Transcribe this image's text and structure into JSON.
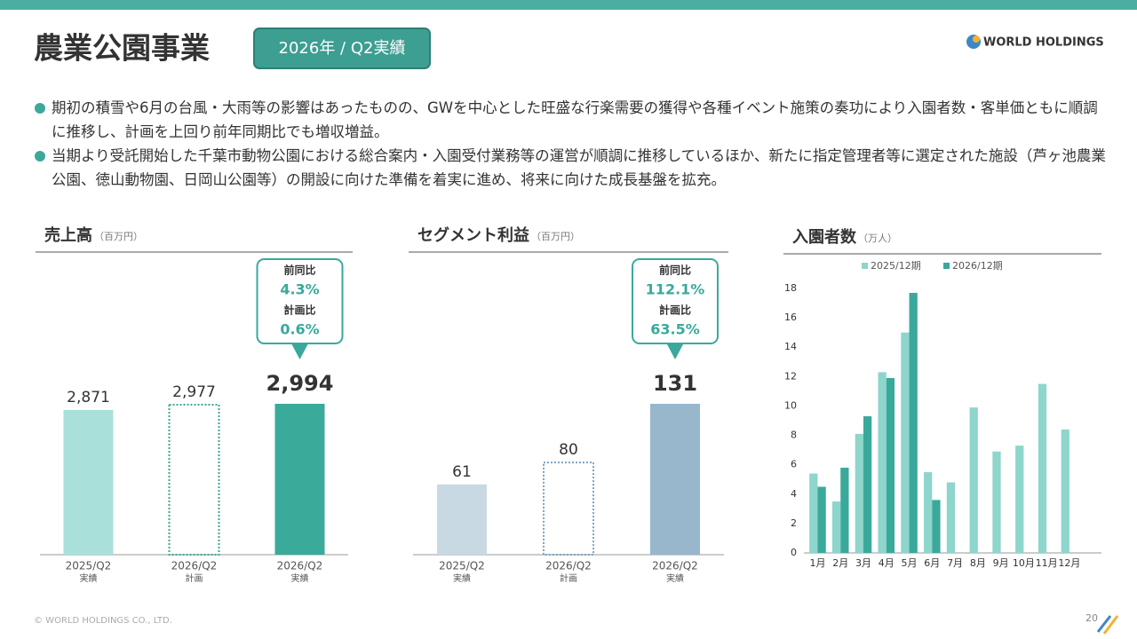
{
  "header": {
    "title": "農業公園事業",
    "badge": "2026年 / Q2実績",
    "logo": "WORLD HOLDINGS"
  },
  "bullets": [
    "期初の積雪や6月の台風・大雨等の影響はあったものの、GWを中心とした旺盛な行楽需要の獲得や各種イベント施策の奏功により入園者数・客単価ともに順調に推移し、計画を上回り前年同期比でも増収増益。",
    "当期より受託開始した千葉市動物公園における総合案内・入園受付業務等の運営が順調に推移しているほか、新たに指定管理者等に選定された施設（芦ヶ池農業公園、徳山動物園、日岡山公園等）の開設に向けた準備を着実に進め、将来に向けた成長基盤を拡充。"
  ],
  "footer": {
    "copyright": "© WORLD HOLDINGS CO., LTD.",
    "page": "20"
  },
  "chart_data": [
    {
      "type": "bar",
      "title": "売上高",
      "unit": "（百万円）",
      "categories": [
        "2025/Q2",
        "2026/Q2",
        "2026/Q2"
      ],
      "sublabels": [
        "実績",
        "計画",
        "実績"
      ],
      "values": [
        2871,
        2977,
        2994
      ],
      "value_labels": [
        "2,871",
        "2,977",
        "2,994"
      ],
      "colors": [
        "#a9e0da",
        "#3fa596",
        "#3aaa9b"
      ],
      "outlined": [
        false,
        true,
        false
      ],
      "callout": [
        {
          "label": "前同比",
          "text": "4.3%"
        },
        {
          "label": "計画比",
          "text": "0.6%"
        }
      ]
    },
    {
      "type": "bar",
      "title": "セグメント利益",
      "unit": "（百万円）",
      "categories": [
        "2025/Q2",
        "2026/Q2",
        "2026/Q2"
      ],
      "sublabels": [
        "実績",
        "計画",
        "実績"
      ],
      "values": [
        61,
        80,
        131
      ],
      "colors": [
        "#c8d9e4",
        "#7ea3b9",
        "#98b6cc"
      ],
      "outlined": [
        false,
        true,
        false
      ],
      "callout": [
        {
          "label": "前同比",
          "text": "112.1%"
        },
        {
          "label": "計画比",
          "text": "63.5%"
        }
      ]
    },
    {
      "type": "grouped-bar",
      "title": "入園者数",
      "unit": "（万人）",
      "categories": [
        "1月",
        "2月",
        "3月",
        "4月",
        "5月",
        "6月",
        "7月",
        "8月",
        "9月",
        "10月",
        "11月",
        "12月"
      ],
      "series": [
        {
          "name": "2025/12期",
          "color": "#8ed5cc",
          "values": [
            5.4,
            3.5,
            8.1,
            12.3,
            15.0,
            5.5,
            4.8,
            9.9,
            6.9,
            7.3,
            11.5,
            8.4
          ]
        },
        {
          "name": "2026/12期",
          "color": "#3aa99b",
          "values": [
            4.5,
            5.8,
            9.3,
            11.9,
            17.7,
            3.6,
            null,
            null,
            null,
            null,
            null,
            null
          ]
        }
      ],
      "ylim": [
        0,
        18
      ],
      "yticks": [
        0,
        2,
        4,
        6,
        8,
        10,
        12,
        14,
        16,
        18
      ]
    }
  ]
}
